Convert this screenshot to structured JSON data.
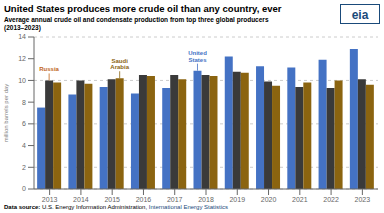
{
  "chart_data": {
    "type": "bar",
    "title": "United States produces more crude oil than any country, ever",
    "subtitle": [
      "Average annual crude oil and condensate production from top three global producers",
      "(2013–2023)"
    ],
    "ylabel": "million barrels per day",
    "categories": [
      2013,
      2014,
      2015,
      2016,
      2017,
      2018,
      2019,
      2020,
      2021,
      2022,
      2023
    ],
    "series": [
      {
        "name": "United States",
        "color": "#4472c4",
        "values": [
          7.5,
          8.7,
          9.4,
          8.8,
          9.3,
          10.9,
          12.2,
          11.3,
          11.2,
          11.9,
          12.9
        ]
      },
      {
        "name": "Russia",
        "color": "#3a3a3a",
        "values": [
          10.0,
          10.0,
          10.1,
          10.5,
          10.5,
          10.5,
          10.8,
          9.9,
          9.4,
          9.3,
          10.1
        ]
      },
      {
        "name": "Saudi Arabia",
        "color": "#8B6410",
        "values": [
          9.8,
          9.7,
          10.2,
          10.4,
          10.1,
          10.4,
          10.7,
          9.5,
          9.8,
          10.0,
          9.6
        ]
      }
    ],
    "ylim": [
      0,
      14
    ],
    "yticks": [
      0,
      2,
      4,
      6,
      8,
      10,
      12,
      14
    ],
    "grid": true,
    "annotations": [
      {
        "text": "Russia",
        "series": "Russia",
        "category": 2013,
        "color": "#c0651a"
      },
      {
        "text": "Saudi\nArabia",
        "series": "Saudi Arabia",
        "category": 2015,
        "color": "#8B6410"
      },
      {
        "text": "United\nStates",
        "series": "United States",
        "category": 2018,
        "color": "#4472c4"
      }
    ],
    "source": {
      "label": "Data source:",
      "text": " U.S. Energy Information Administration, ",
      "link": "International Energy Statistics"
    },
    "logo": "eia"
  }
}
